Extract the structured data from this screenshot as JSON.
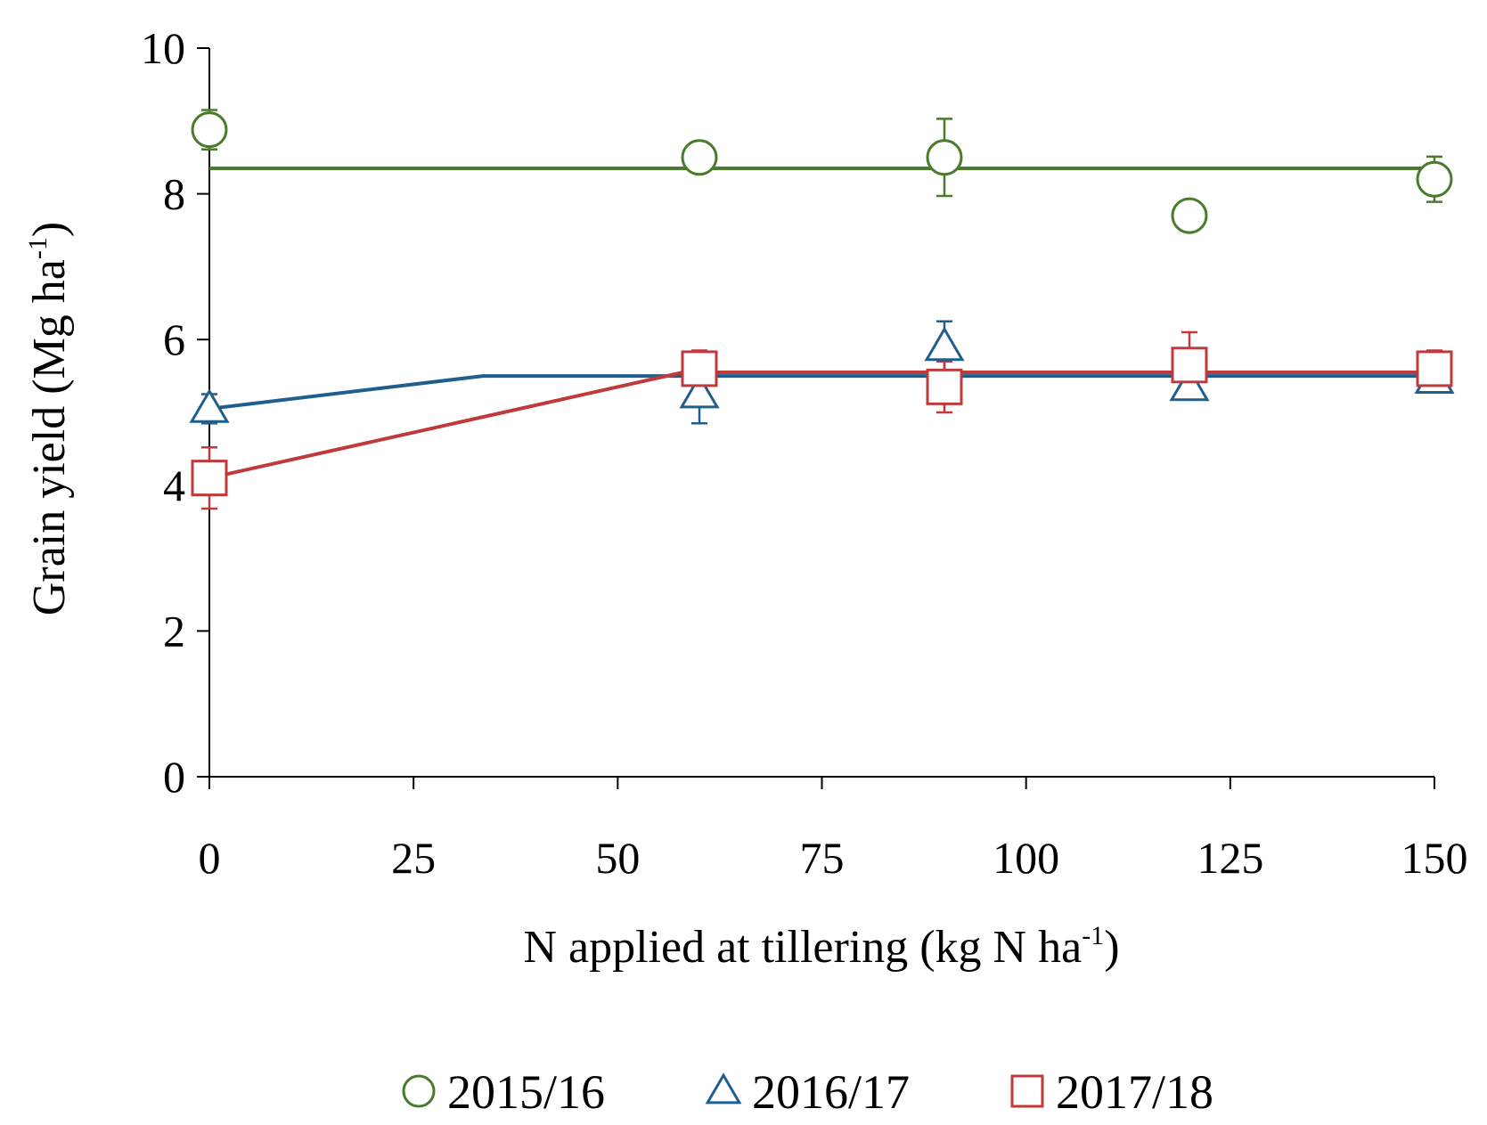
{
  "chart_data": {
    "type": "scatter",
    "title": "",
    "xlabel": {
      "main": "N applied at tillering (kg N ha",
      "sup": "-1",
      "close": ")"
    },
    "ylabel": {
      "main": "Grain yield (Mg ha",
      "sup": "-1",
      "close": ")"
    },
    "xlim": [
      0,
      150
    ],
    "ylim": [
      0,
      10
    ],
    "x_ticks": [
      0,
      25,
      50,
      75,
      100,
      125,
      150
    ],
    "x_tick_labels": [
      "0",
      "25",
      "50",
      "75",
      "100",
      "125",
      "150"
    ],
    "y_ticks": [
      0,
      2,
      4,
      6,
      8,
      10
    ],
    "y_tick_labels": [
      "0",
      "2",
      "4",
      "6",
      "8",
      "10"
    ],
    "grid": false,
    "legend_position": "bottom",
    "series": [
      {
        "name": "2015/16",
        "marker": "circle",
        "color": "#4a7a2b",
        "x": [
          0,
          60,
          90,
          120,
          150
        ],
        "y": [
          8.88,
          8.5,
          8.5,
          7.7,
          8.2
        ],
        "error": [
          0.27,
          0.1,
          0.53,
          0.0,
          0.31
        ],
        "fit_x": [
          0,
          150
        ],
        "fit_y": [
          8.35,
          8.35
        ]
      },
      {
        "name": "2016/17",
        "marker": "triangle",
        "color": "#1f5f8f",
        "x": [
          0,
          60,
          90,
          120,
          150
        ],
        "y": [
          5.05,
          5.25,
          5.9,
          5.35,
          5.45
        ],
        "error": [
          0.2,
          0.4,
          0.35,
          0.1,
          0.12
        ],
        "fit_x": [
          0,
          33.5,
          150
        ],
        "fit_y": [
          5.05,
          5.5,
          5.5
        ]
      },
      {
        "name": "2017/18",
        "marker": "square",
        "color": "#c0393b",
        "x": [
          0,
          60,
          90,
          120,
          150
        ],
        "y": [
          4.1,
          5.6,
          5.35,
          5.65,
          5.6
        ],
        "error": [
          0.42,
          0.25,
          0.35,
          0.45,
          0.25
        ],
        "fit_x": [
          0,
          58,
          150
        ],
        "fit_y": [
          4.1,
          5.55,
          5.55
        ]
      }
    ]
  }
}
